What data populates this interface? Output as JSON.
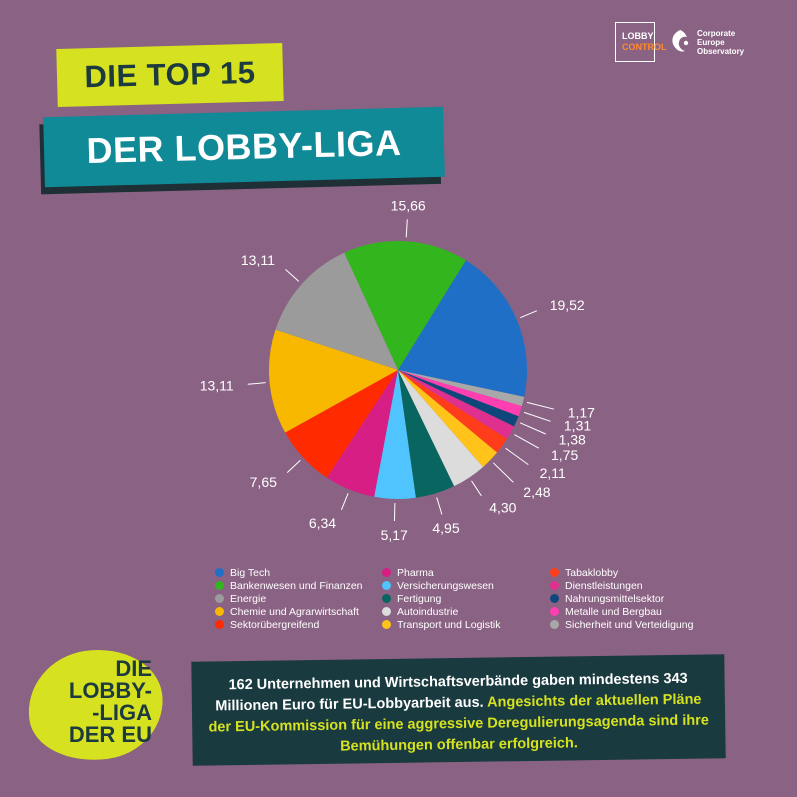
{
  "logos": {
    "lobbycontrol_line1": "LOBBY",
    "lobbycontrol_line2": "CONTROL",
    "ceo_line1": "Corporate",
    "ceo_line2": "Europe",
    "ceo_line3": "Observatory"
  },
  "titles": {
    "top": "DIE TOP 15",
    "main": "DER LOBBY-LIGA"
  },
  "chart_data": {
    "type": "pie",
    "categories": [
      "Big Tech",
      "Bankenwesen und Finanzen",
      "Energie",
      "Chemie und Agrarwirtschaft",
      "Sektorübergreifend",
      "Pharma",
      "Versicherungswesen",
      "Fertigung",
      "Autoindustrie",
      "Transport und Logistik",
      "Tabaklobby",
      "Dienstleistungen",
      "Nahrungsmittelsektor",
      "Metalle und Bergbau",
      "Sicherheit und Verteidigung"
    ],
    "values": [
      19.52,
      15.66,
      13.11,
      13.11,
      7.65,
      6.34,
      5.17,
      4.95,
      4.3,
      2.48,
      2.11,
      1.75,
      1.38,
      1.31,
      1.17
    ],
    "value_labels": [
      "19,52",
      "15,66",
      "13,11",
      "13,11",
      "7,65",
      "6,34",
      "5,17",
      "4,95",
      "4,30",
      "2,48",
      "2,11",
      "1,75",
      "1,38",
      "1,31",
      "1,17"
    ],
    "colors": [
      "#1f6fc7",
      "#33b51d",
      "#9b9b9b",
      "#f8b800",
      "#ff2a00",
      "#d61e85",
      "#4fc4ff",
      "#08655f",
      "#dcdcdc",
      "#ffc31a",
      "#ff3d1a",
      "#e0308f",
      "#10477a",
      "#ff3fb0",
      "#a8a8a8"
    ]
  },
  "legend_order": [
    0,
    1,
    2,
    3,
    4,
    5,
    6,
    7,
    8,
    9,
    10,
    11,
    12,
    13,
    14
  ],
  "blob": {
    "line1": "DIE",
    "line2": "LOBBY-",
    "line3": "-LIGA",
    "line4": "DER EU"
  },
  "info": {
    "text_white": "162 Unternehmen und Wirtschaftsverbände gaben mindestens 343 Millionen Euro für EU-Lobbyarbeit aus.",
    "text_highlight": "Angesichts der aktuellen Pläne der EU-Kommission für eine aggressive Deregulierungsagenda sind ihre Bemühungen offenbar erfolgreich."
  }
}
